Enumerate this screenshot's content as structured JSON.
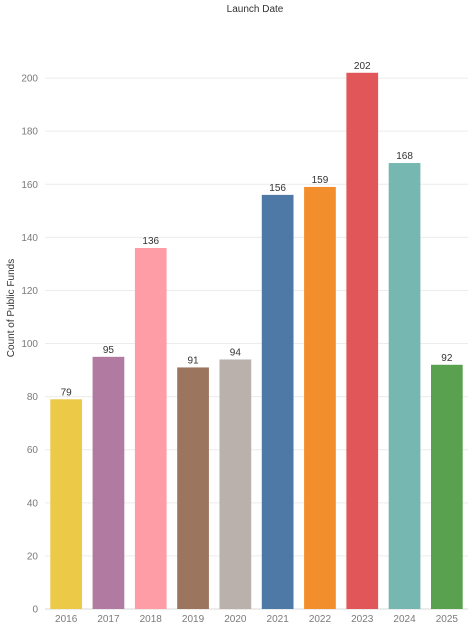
{
  "chart_data": {
    "type": "bar",
    "title": "Launch Date",
    "xlabel": "",
    "ylabel": "Count of Public Funds",
    "categories": [
      "2016",
      "2017",
      "2018",
      "2019",
      "2020",
      "2021",
      "2022",
      "2023",
      "2024",
      "2025"
    ],
    "values": [
      79,
      95,
      136,
      91,
      94,
      156,
      159,
      202,
      168,
      92
    ],
    "colors": [
      "#EDC948",
      "#B07AA1",
      "#FF9DA7",
      "#9C755F",
      "#BAB0AC",
      "#4E79A7",
      "#F28E2B",
      "#E15759",
      "#76B7B2",
      "#59A14F"
    ],
    "ylim": [
      0,
      220
    ],
    "yticks": [
      0,
      20,
      40,
      60,
      80,
      100,
      120,
      140,
      160,
      180,
      200
    ],
    "grid": true,
    "legend": "none",
    "data_labels": true
  }
}
